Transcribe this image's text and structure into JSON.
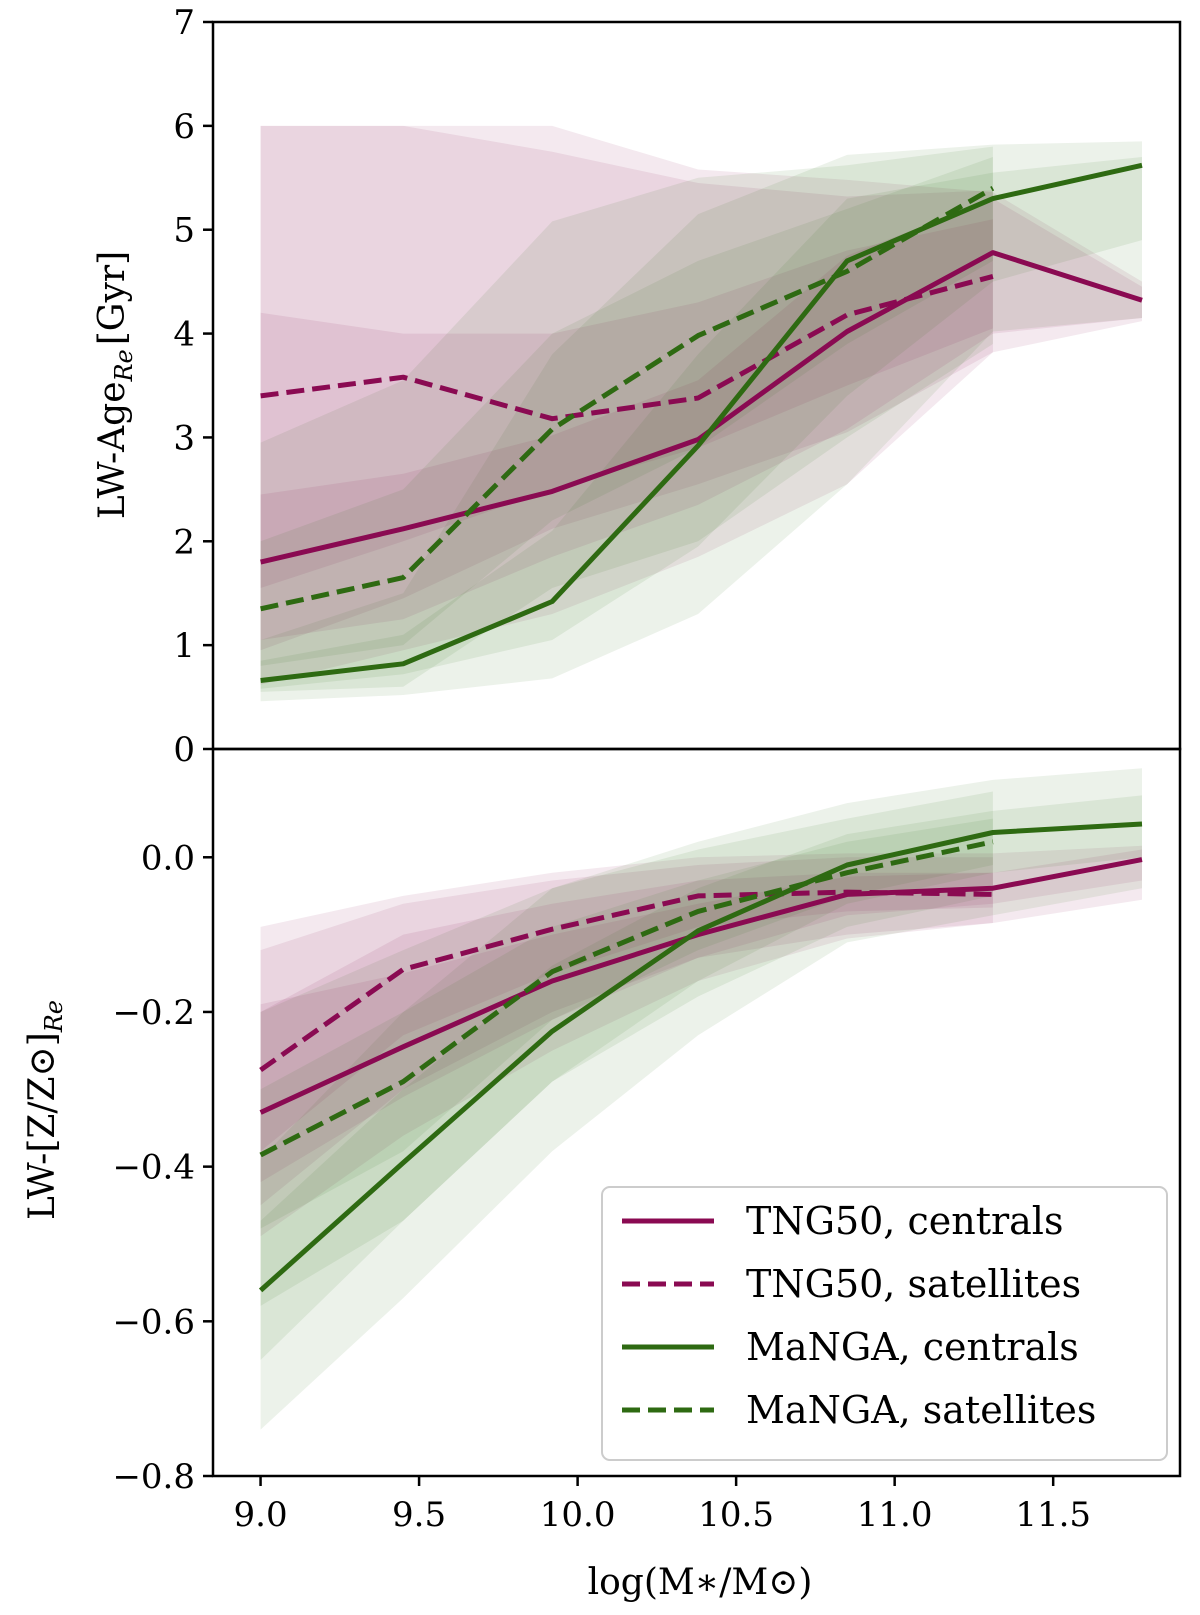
{
  "chart_data": [
    {
      "type": "line",
      "panel": "top",
      "ylabel": "LW-Age",
      "ylabel_subscript": "Re",
      "ylabel_unit": "[Gyr]",
      "xlabel": "",
      "ylim": [
        0,
        7
      ],
      "xlim": [
        8.85,
        11.9
      ],
      "yticks": [
        0,
        1,
        2,
        3,
        4,
        5,
        6,
        7
      ],
      "ytick_labels": [
        "0",
        "1",
        "2",
        "3",
        "4",
        "5",
        "6",
        "7"
      ],
      "series": [
        {
          "name": "TNG50, centrals",
          "color": "#8a0a52",
          "dash": "solid",
          "x": [
            9.0,
            9.45,
            9.92,
            10.38,
            10.85,
            11.31,
            11.78
          ],
          "y": [
            1.8,
            2.12,
            2.48,
            2.98,
            4.02,
            4.78,
            4.32
          ],
          "band_outer_low": [
            0.62,
            0.95,
            1.3,
            1.85,
            2.55,
            3.82,
            4.12
          ],
          "band_outer_high": [
            6.0,
            6.0,
            6.0,
            5.58,
            5.48,
            5.36,
            4.5
          ],
          "band_inner_low": [
            1.05,
            1.25,
            1.85,
            2.35,
            3.08,
            4.0,
            4.15
          ],
          "band_inner_high": [
            2.45,
            2.65,
            3.02,
            3.55,
            4.75,
            5.3,
            4.45
          ]
        },
        {
          "name": "TNG50, satellites",
          "color": "#8a0a52",
          "dash": "dashed",
          "x": [
            9.0,
            9.45,
            9.92,
            10.38,
            10.85,
            11.31
          ],
          "y": [
            3.4,
            3.58,
            3.18,
            3.38,
            4.18,
            4.55
          ],
          "band_outer_low": [
            0.95,
            1.45,
            2.12,
            2.55,
            3.05,
            3.82
          ],
          "band_outer_high": [
            6.0,
            6.0,
            5.75,
            5.45,
            5.32,
            5.38
          ],
          "band_inner_low": [
            1.55,
            2.0,
            2.5,
            2.9,
            3.5,
            4.05
          ],
          "band_inner_high": [
            4.2,
            4.0,
            4.0,
            4.3,
            4.8,
            5.1
          ]
        },
        {
          "name": "MaNGA, centrals",
          "color": "#2e6a12",
          "dash": "solid",
          "x": [
            9.0,
            9.45,
            9.92,
            10.38,
            10.85,
            11.31,
            11.78
          ],
          "y": [
            0.66,
            0.82,
            1.42,
            2.92,
            4.7,
            5.3,
            5.62
          ],
          "band_outer_low": [
            0.46,
            0.52,
            0.68,
            1.3,
            2.55,
            4.02,
            4.15
          ],
          "band_outer_high": [
            1.05,
            1.5,
            3.8,
            5.15,
            5.72,
            5.82,
            5.85
          ],
          "band_inner_low": [
            0.58,
            0.72,
            1.05,
            1.95,
            3.4,
            4.5,
            4.9
          ],
          "band_inner_high": [
            0.85,
            1.1,
            2.1,
            3.8,
            5.3,
            5.55,
            5.7
          ]
        },
        {
          "name": "MaNGA, satellites",
          "color": "#2e6a12",
          "dash": "dashed",
          "x": [
            9.0,
            9.45,
            9.92,
            10.38,
            10.85,
            11.31
          ],
          "y": [
            1.35,
            1.65,
            3.08,
            3.98,
            4.6,
            5.4
          ],
          "band_outer_low": [
            0.55,
            0.6,
            1.55,
            2.0,
            3.0,
            3.9
          ],
          "band_outer_high": [
            2.95,
            3.55,
            5.08,
            5.5,
            5.62,
            5.8
          ],
          "band_inner_low": [
            0.8,
            1.0,
            2.2,
            2.9,
            3.9,
            4.7
          ],
          "band_inner_high": [
            2.0,
            2.5,
            4.0,
            4.7,
            5.2,
            5.7
          ]
        }
      ]
    },
    {
      "type": "line",
      "panel": "bottom",
      "ylabel": "LW-[Z/Z⊙]",
      "ylabel_subscript": "Re",
      "xlabel": "log(M∗/M⊙)",
      "ylim": [
        -0.8,
        0.14
      ],
      "xlim": [
        8.85,
        11.9
      ],
      "yticks": [
        -0.8,
        -0.6,
        -0.4,
        -0.2,
        0.0
      ],
      "ytick_labels": [
        "−0.8",
        "−0.6",
        "−0.4",
        "−0.2",
        "0.0"
      ],
      "xticks": [
        9.0,
        9.5,
        10.0,
        10.5,
        11.0,
        11.5
      ],
      "xtick_labels": [
        "9.0",
        "9.5",
        "10.0",
        "10.5",
        "11.0",
        "11.5"
      ],
      "series": [
        {
          "name": "TNG50, centrals",
          "color": "#8a0a52",
          "dash": "solid",
          "x": [
            9.0,
            9.45,
            9.92,
            10.38,
            10.85,
            11.31,
            11.78
          ],
          "y": [
            -0.33,
            -0.245,
            -0.16,
            -0.1,
            -0.048,
            -0.04,
            -0.003
          ],
          "band_outer_low": [
            -0.49,
            -0.36,
            -0.25,
            -0.16,
            -0.105,
            -0.085,
            -0.055
          ],
          "band_outer_high": [
            -0.09,
            -0.05,
            -0.02,
            0.0,
            0.005,
            0.005,
            0.015
          ],
          "band_inner_low": [
            -0.42,
            -0.31,
            -0.21,
            -0.13,
            -0.075,
            -0.06,
            -0.03
          ],
          "band_inner_high": [
            -0.19,
            -0.15,
            -0.1,
            -0.06,
            -0.025,
            -0.02,
            0.01
          ]
        },
        {
          "name": "TNG50, satellites",
          "color": "#8a0a52",
          "dash": "dashed",
          "x": [
            9.0,
            9.45,
            9.92,
            10.38,
            10.85,
            11.31
          ],
          "y": [
            -0.275,
            -0.145,
            -0.093,
            -0.05,
            -0.045,
            -0.048
          ],
          "band_outer_low": [
            -0.45,
            -0.3,
            -0.2,
            -0.13,
            -0.1,
            -0.085
          ],
          "band_outer_high": [
            -0.12,
            -0.06,
            -0.03,
            -0.01,
            0.0,
            0.0
          ],
          "band_inner_low": [
            -0.38,
            -0.23,
            -0.15,
            -0.09,
            -0.07,
            -0.065
          ],
          "band_inner_high": [
            -0.2,
            -0.1,
            -0.06,
            -0.03,
            -0.02,
            -0.02
          ]
        },
        {
          "name": "MaNGA, centrals",
          "color": "#2e6a12",
          "dash": "solid",
          "x": [
            9.0,
            9.45,
            9.92,
            10.38,
            10.85,
            11.31,
            11.78
          ],
          "y": [
            -0.56,
            -0.395,
            -0.225,
            -0.095,
            -0.01,
            0.032,
            0.043
          ],
          "band_outer_low": [
            -0.74,
            -0.57,
            -0.38,
            -0.23,
            -0.11,
            -0.075,
            -0.04
          ],
          "band_outer_high": [
            -0.39,
            -0.2,
            -0.04,
            0.02,
            0.07,
            0.1,
            0.115
          ],
          "band_inner_low": [
            -0.65,
            -0.47,
            -0.29,
            -0.16,
            -0.06,
            -0.02,
            0.0
          ],
          "band_inner_high": [
            -0.47,
            -0.3,
            -0.14,
            -0.04,
            0.03,
            0.06,
            0.08
          ]
        },
        {
          "name": "MaNGA, satellites",
          "color": "#2e6a12",
          "dash": "dashed",
          "x": [
            9.0,
            9.45,
            9.92,
            10.38,
            10.85,
            11.31
          ],
          "y": [
            -0.385,
            -0.29,
            -0.148,
            -0.07,
            -0.02,
            0.02
          ],
          "band_outer_low": [
            -0.58,
            -0.47,
            -0.29,
            -0.18,
            -0.09,
            -0.05
          ],
          "band_outer_high": [
            -0.2,
            -0.12,
            -0.04,
            0.01,
            0.05,
            0.085
          ],
          "band_inner_low": [
            -0.48,
            -0.38,
            -0.21,
            -0.12,
            -0.05,
            -0.01
          ],
          "band_inner_high": [
            -0.3,
            -0.2,
            -0.09,
            -0.03,
            0.02,
            0.05
          ]
        }
      ]
    }
  ],
  "legend": {
    "position": "lower-right",
    "items": [
      {
        "label": "TNG50, centrals",
        "color": "#8a0a52",
        "dash": "solid"
      },
      {
        "label": "TNG50, satellites",
        "color": "#8a0a52",
        "dash": "dashed"
      },
      {
        "label": "MaNGA, centrals",
        "color": "#2e6a12",
        "dash": "solid"
      },
      {
        "label": "MaNGA, satellites",
        "color": "#2e6a12",
        "dash": "dashed"
      }
    ]
  }
}
